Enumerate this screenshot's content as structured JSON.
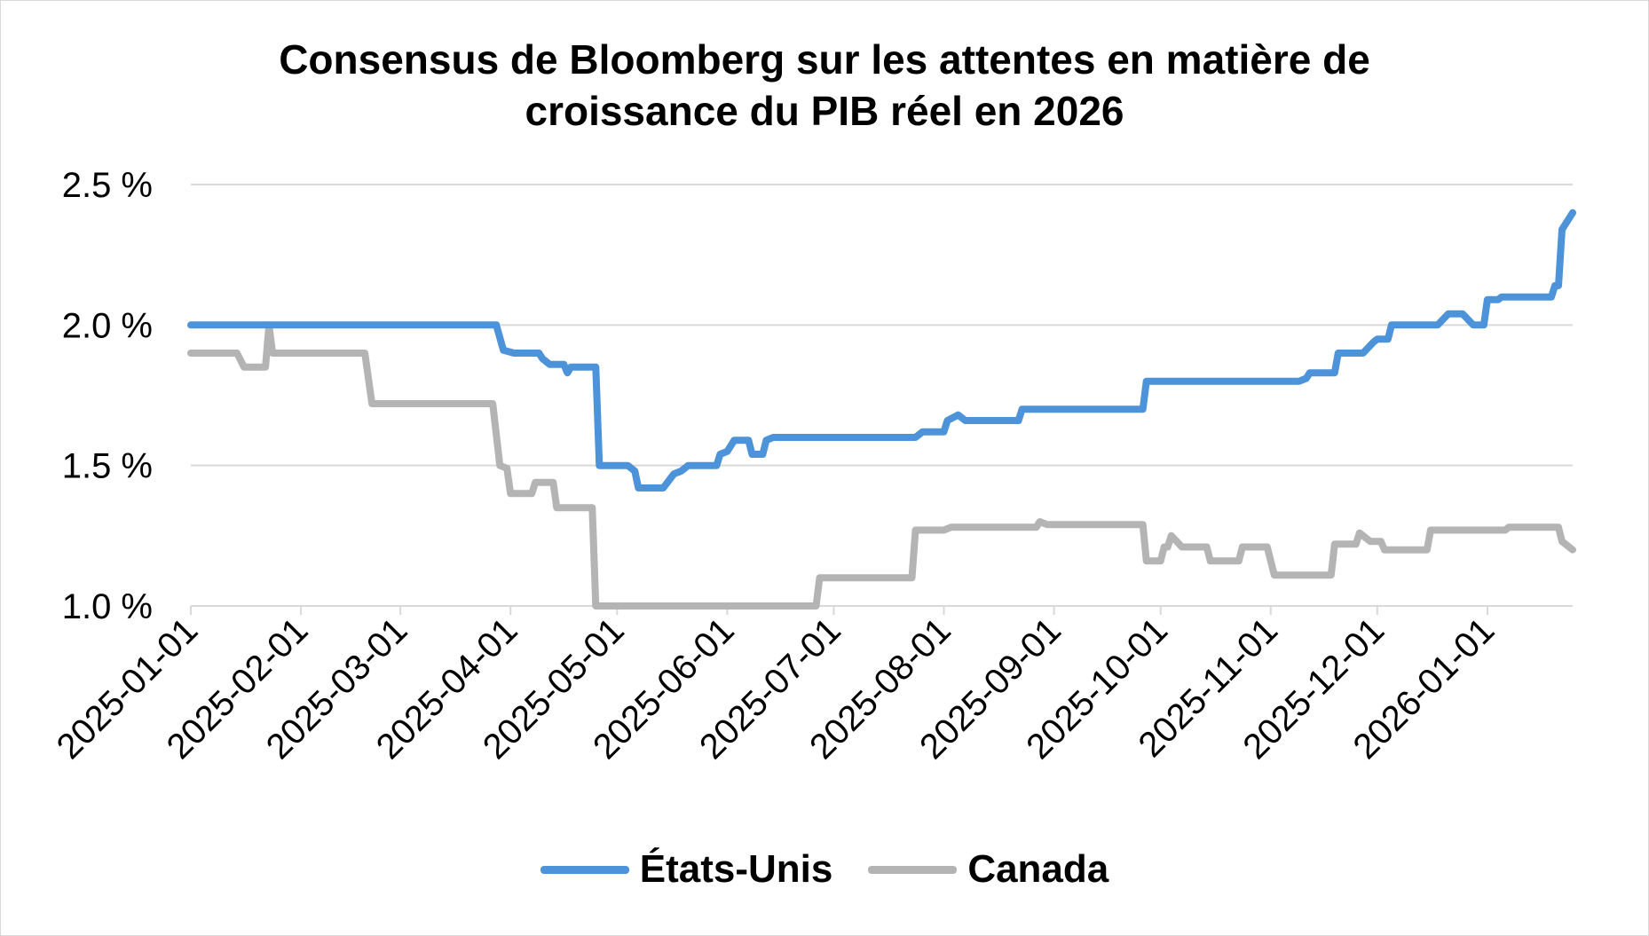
{
  "colors": {
    "us": "#4d93d9",
    "canada": "#b4b4b4",
    "grid": "#d9d9d9",
    "axis": "#d9d9d9"
  },
  "chart_data": {
    "type": "line",
    "title": "Consensus de Bloomberg sur les attentes en matière de croissance du PIB réel en 2026",
    "title_lines": [
      "Consensus de Bloomberg sur les attentes en matière de",
      "croissance du PIB réel en 2026"
    ],
    "xlabel": "",
    "ylabel": "",
    "ylim": [
      1.0,
      2.5
    ],
    "xlim": [
      "2025-01-01",
      "2026-01-25"
    ],
    "grid": true,
    "legend": "bottom",
    "y_ticks": [
      1.0,
      1.5,
      2.0,
      2.5
    ],
    "y_tick_labels": [
      "1.0 %",
      "1.5 %",
      "2.0 %",
      "2.5 %"
    ],
    "x_ticks": [
      "2025-01-01",
      "2025-02-01",
      "2025-03-01",
      "2025-04-01",
      "2025-05-01",
      "2025-06-01",
      "2025-07-01",
      "2025-08-01",
      "2025-09-01",
      "2025-10-01",
      "2025-11-01",
      "2025-12-01",
      "2026-01-01"
    ],
    "series": [
      {
        "name": "États-Unis",
        "color": "#4d93d9",
        "points": [
          [
            "2025-01-01",
            2.0
          ],
          [
            "2025-03-28",
            2.0
          ],
          [
            "2025-03-30",
            1.91
          ],
          [
            "2025-04-02",
            1.9
          ],
          [
            "2025-04-09",
            1.9
          ],
          [
            "2025-04-10",
            1.88
          ],
          [
            "2025-04-12",
            1.86
          ],
          [
            "2025-04-16",
            1.86
          ],
          [
            "2025-04-17",
            1.83
          ],
          [
            "2025-04-18",
            1.85
          ],
          [
            "2025-04-25",
            1.85
          ],
          [
            "2025-04-26",
            1.5
          ],
          [
            "2025-05-04",
            1.5
          ],
          [
            "2025-05-06",
            1.48
          ],
          [
            "2025-05-07",
            1.42
          ],
          [
            "2025-05-14",
            1.42
          ],
          [
            "2025-05-17",
            1.47
          ],
          [
            "2025-05-19",
            1.48
          ],
          [
            "2025-05-21",
            1.5
          ],
          [
            "2025-05-29",
            1.5
          ],
          [
            "2025-05-30",
            1.54
          ],
          [
            "2025-06-01",
            1.55
          ],
          [
            "2025-06-03",
            1.59
          ],
          [
            "2025-06-07",
            1.59
          ],
          [
            "2025-06-08",
            1.54
          ],
          [
            "2025-06-11",
            1.54
          ],
          [
            "2025-06-12",
            1.59
          ],
          [
            "2025-06-14",
            1.6
          ],
          [
            "2025-07-24",
            1.6
          ],
          [
            "2025-07-26",
            1.62
          ],
          [
            "2025-08-01",
            1.62
          ],
          [
            "2025-08-02",
            1.66
          ],
          [
            "2025-08-05",
            1.68
          ],
          [
            "2025-08-07",
            1.66
          ],
          [
            "2025-08-22",
            1.66
          ],
          [
            "2025-08-23",
            1.7
          ],
          [
            "2025-09-26",
            1.7
          ],
          [
            "2025-09-27",
            1.8
          ],
          [
            "2025-11-09",
            1.8
          ],
          [
            "2025-11-11",
            1.81
          ],
          [
            "2025-11-12",
            1.83
          ],
          [
            "2025-11-19",
            1.83
          ],
          [
            "2025-11-20",
            1.9
          ],
          [
            "2025-11-27",
            1.9
          ],
          [
            "2025-11-30",
            1.94
          ],
          [
            "2025-12-01",
            1.95
          ],
          [
            "2025-12-04",
            1.95
          ],
          [
            "2025-12-05",
            2.0
          ],
          [
            "2025-12-18",
            2.0
          ],
          [
            "2025-12-21",
            2.04
          ],
          [
            "2025-12-25",
            2.04
          ],
          [
            "2025-12-28",
            2.0
          ],
          [
            "2025-12-31",
            2.0
          ],
          [
            "2026-01-01",
            2.09
          ],
          [
            "2026-01-04",
            2.09
          ],
          [
            "2026-01-05",
            2.1
          ],
          [
            "2026-01-19",
            2.1
          ],
          [
            "2026-01-20",
            2.14
          ],
          [
            "2026-01-21",
            2.14
          ],
          [
            "2026-01-22",
            2.34
          ],
          [
            "2026-01-25",
            2.4
          ]
        ]
      },
      {
        "name": "Canada",
        "color": "#b4b4b4",
        "points": [
          [
            "2025-01-01",
            1.9
          ],
          [
            "2025-01-14",
            1.9
          ],
          [
            "2025-01-16",
            1.85
          ],
          [
            "2025-01-22",
            1.85
          ],
          [
            "2025-01-23",
            2.0
          ],
          [
            "2025-01-24",
            1.9
          ],
          [
            "2025-02-19",
            1.9
          ],
          [
            "2025-02-21",
            1.72
          ],
          [
            "2025-03-27",
            1.72
          ],
          [
            "2025-03-29",
            1.5
          ],
          [
            "2025-03-31",
            1.49
          ],
          [
            "2025-04-01",
            1.4
          ],
          [
            "2025-04-07",
            1.4
          ],
          [
            "2025-04-08",
            1.44
          ],
          [
            "2025-04-13",
            1.44
          ],
          [
            "2025-04-14",
            1.35
          ],
          [
            "2025-04-24",
            1.35
          ],
          [
            "2025-04-25",
            1.0
          ],
          [
            "2025-06-26",
            1.0
          ],
          [
            "2025-06-27",
            1.1
          ],
          [
            "2025-07-23",
            1.1
          ],
          [
            "2025-07-24",
            1.27
          ],
          [
            "2025-08-01",
            1.27
          ],
          [
            "2025-08-03",
            1.28
          ],
          [
            "2025-08-27",
            1.28
          ],
          [
            "2025-08-28",
            1.3
          ],
          [
            "2025-08-30",
            1.29
          ],
          [
            "2025-09-26",
            1.29
          ],
          [
            "2025-09-27",
            1.16
          ],
          [
            "2025-10-01",
            1.16
          ],
          [
            "2025-10-02",
            1.21
          ],
          [
            "2025-10-03",
            1.21
          ],
          [
            "2025-10-04",
            1.25
          ],
          [
            "2025-10-07",
            1.21
          ],
          [
            "2025-10-14",
            1.21
          ],
          [
            "2025-10-15",
            1.16
          ],
          [
            "2025-10-23",
            1.16
          ],
          [
            "2025-10-24",
            1.21
          ],
          [
            "2025-10-31",
            1.21
          ],
          [
            "2025-11-02",
            1.11
          ],
          [
            "2025-11-18",
            1.11
          ],
          [
            "2025-11-19",
            1.22
          ],
          [
            "2025-11-25",
            1.22
          ],
          [
            "2025-11-26",
            1.26
          ],
          [
            "2025-11-29",
            1.23
          ],
          [
            "2025-12-02",
            1.23
          ],
          [
            "2025-12-03",
            1.2
          ],
          [
            "2025-12-15",
            1.2
          ],
          [
            "2025-12-16",
            1.27
          ],
          [
            "2026-01-06",
            1.27
          ],
          [
            "2026-01-07",
            1.28
          ],
          [
            "2026-01-21",
            1.28
          ],
          [
            "2026-01-22",
            1.23
          ],
          [
            "2026-01-25",
            1.2
          ]
        ]
      }
    ]
  }
}
